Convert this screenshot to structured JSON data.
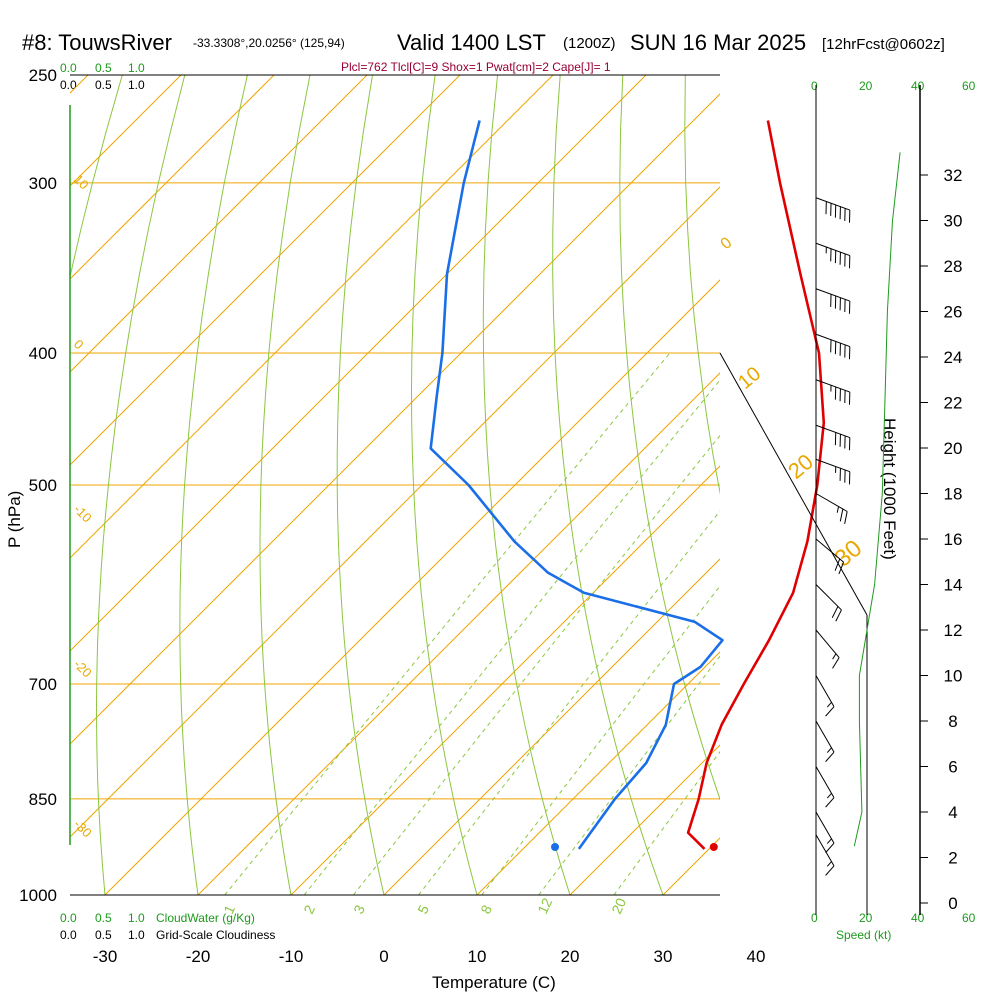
{
  "header": {
    "station": "#8: TouwsRiver",
    "coords": "-33.3308°,20.0256° (125,94)",
    "valid": "Valid 1400 LST",
    "zulu": "(1200Z)",
    "date": "SUN 16 Mar 2025",
    "fcst": "[12hrFcst@0602z]",
    "indices": "Plcl=762 Tlcl[C]=9 Shox=1 Pwat[cm]=2 Cape[J]= 1"
  },
  "labels": {
    "cloud_scale_top_green": [
      "0.0",
      "0.5",
      "1.0"
    ],
    "cloud_scale_top_black": [
      "0.0",
      "0.5",
      "1.0"
    ],
    "cloud_water": "CloudWater (g/Kg)",
    "grid_cloud": "Grid-Scale Cloudiness",
    "speed_label": "Speed (kt)",
    "speed_ticks": [
      "0",
      "20",
      "40",
      "60"
    ],
    "height_label": "Height (1000 Feet)"
  },
  "colors": {
    "isotherm": "#f0a500",
    "dry_adiabat": "#8cc63f",
    "mixing_ratio": "#8cc63f",
    "temperature": "#e00000",
    "dewpoint": "#1a6fe8",
    "title_accent": "#990033",
    "cloud_green": "#1e9a1e"
  },
  "chart_data": {
    "type": "line",
    "title": "#8: TouwsRiver  Valid 1400 LST (1200Z) SUN 16 Mar 2025",
    "xlabel": "Temperature (C)",
    "ylabel": "P (hPa)",
    "x_ticks": [
      "-30",
      "-20",
      "-10",
      "0",
      "10",
      "20",
      "30",
      "40"
    ],
    "p_ticks": [
      "250",
      "300",
      "400",
      "500",
      "700",
      "850",
      "1000"
    ],
    "height_ticks_kft": [
      "32",
      "30",
      "28",
      "26",
      "24",
      "22",
      "20",
      "18",
      "16",
      "14",
      "12",
      "10",
      "8",
      "6",
      "4",
      "2",
      "0"
    ],
    "isotherm_labels": [
      "10",
      "0",
      "-10",
      "-20",
      "-30",
      "0",
      "10",
      "20",
      "30"
    ],
    "mixing_ratio_labels": [
      "1",
      "2",
      "3",
      "5",
      "8",
      "12",
      "20"
    ],
    "series": [
      {
        "name": "Temperature",
        "points": [
          {
            "p": 925,
            "t": 29.5
          },
          {
            "p": 900,
            "t": 26.0
          },
          {
            "p": 850,
            "t": 23.5
          },
          {
            "p": 800,
            "t": 20.5
          },
          {
            "p": 750,
            "t": 18.0
          },
          {
            "p": 700,
            "t": 16.0
          },
          {
            "p": 650,
            "t": 14.0
          },
          {
            "p": 600,
            "t": 11.5
          },
          {
            "p": 550,
            "t": 7.5
          },
          {
            "p": 500,
            "t": 2.5
          },
          {
            "p": 450,
            "t": -3.5
          },
          {
            "p": 400,
            "t": -11.5
          },
          {
            "p": 350,
            "t": -22.0
          },
          {
            "p": 300,
            "t": -34.0
          },
          {
            "p": 270,
            "t": -42.0
          }
        ]
      },
      {
        "name": "Dewpoint",
        "points": [
          {
            "p": 925,
            "t": 16.0
          },
          {
            "p": 900,
            "t": 15.5
          },
          {
            "p": 850,
            "t": 14.5
          },
          {
            "p": 800,
            "t": 14.0
          },
          {
            "p": 750,
            "t": 12.0
          },
          {
            "p": 700,
            "t": 8.5
          },
          {
            "p": 680,
            "t": 9.5
          },
          {
            "p": 650,
            "t": 9.0
          },
          {
            "p": 630,
            "t": 4.0
          },
          {
            "p": 600,
            "t": -11.0
          },
          {
            "p": 580,
            "t": -17.0
          },
          {
            "p": 550,
            "t": -24.0
          },
          {
            "p": 500,
            "t": -35.0
          },
          {
            "p": 470,
            "t": -43.0
          },
          {
            "p": 430,
            "t": -48.0
          },
          {
            "p": 400,
            "t": -52.0
          },
          {
            "p": 350,
            "t": -60.0
          },
          {
            "p": 300,
            "t": -68.0
          },
          {
            "p": 270,
            "t": -73.0
          }
        ]
      }
    ],
    "surface": {
      "temperature": 30.3,
      "dewpoint": 18.3
    },
    "wind_barbs": [
      {
        "h_kft": 31,
        "dir": 290,
        "spd_kt": 60
      },
      {
        "h_kft": 29,
        "dir": 290,
        "spd_kt": 55
      },
      {
        "h_kft": 27,
        "dir": 290,
        "spd_kt": 50
      },
      {
        "h_kft": 25,
        "dir": 290,
        "spd_kt": 50
      },
      {
        "h_kft": 23,
        "dir": 290,
        "spd_kt": 45
      },
      {
        "h_kft": 21,
        "dir": 290,
        "spd_kt": 40
      },
      {
        "h_kft": 19.5,
        "dir": 290,
        "spd_kt": 35
      },
      {
        "h_kft": 18,
        "dir": 300,
        "spd_kt": 25
      },
      {
        "h_kft": 16,
        "dir": 310,
        "spd_kt": 20
      },
      {
        "h_kft": 14,
        "dir": 315,
        "spd_kt": 20
      },
      {
        "h_kft": 12,
        "dir": 320,
        "spd_kt": 15
      },
      {
        "h_kft": 10,
        "dir": 330,
        "spd_kt": 15
      },
      {
        "h_kft": 8,
        "dir": 330,
        "spd_kt": 15
      },
      {
        "h_kft": 6,
        "dir": 330,
        "spd_kt": 15
      },
      {
        "h_kft": 4,
        "dir": 330,
        "spd_kt": 15
      },
      {
        "h_kft": 3,
        "dir": 330,
        "spd_kt": 15
      }
    ],
    "wind_speed_profile": [
      {
        "h_kft": 2.5,
        "spd_kt": 15
      },
      {
        "h_kft": 4,
        "spd_kt": 18
      },
      {
        "h_kft": 8,
        "spd_kt": 17
      },
      {
        "h_kft": 10,
        "spd_kt": 17
      },
      {
        "h_kft": 12,
        "spd_kt": 20
      },
      {
        "h_kft": 14,
        "spd_kt": 23
      },
      {
        "h_kft": 18,
        "spd_kt": 26
      },
      {
        "h_kft": 22,
        "spd_kt": 27
      },
      {
        "h_kft": 26,
        "spd_kt": 28
      },
      {
        "h_kft": 30,
        "spd_kt": 30
      },
      {
        "h_kft": 33,
        "spd_kt": 33
      }
    ],
    "grid": true
  }
}
